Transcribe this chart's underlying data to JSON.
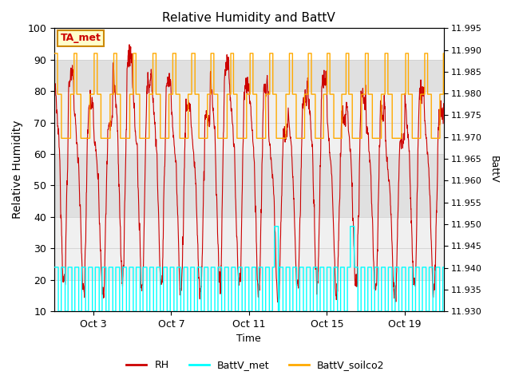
{
  "title": "Relative Humidity and BattV",
  "xlabel": "Time",
  "ylabel_left": "Relative Humidity",
  "ylabel_right": "BattV",
  "ylim_left": [
    10,
    100
  ],
  "ylim_right": [
    11.93,
    11.995
  ],
  "yticks_left": [
    10,
    20,
    30,
    40,
    50,
    60,
    70,
    80,
    90,
    100
  ],
  "yticks_right": [
    11.93,
    11.935,
    11.94,
    11.945,
    11.95,
    11.955,
    11.96,
    11.965,
    11.97,
    11.975,
    11.98,
    11.985,
    11.99,
    11.995
  ],
  "xtick_labels": [
    "Oct 3",
    "Oct 7",
    "Oct 11",
    "Oct 15",
    "Oct 19"
  ],
  "xtick_positions": [
    2,
    6,
    10,
    14,
    18
  ],
  "annotation_text": "TA_met",
  "colors": {
    "rh": "#cc0000",
    "battv_met": "#00ffff",
    "battv_soilco2": "#ffaa00",
    "bg_dark": "#e0e0e0",
    "bg_light": "#f0f0f0",
    "annotation_bg": "#ffffcc",
    "annotation_border": "#cc8800"
  },
  "legend_labels": [
    "RH",
    "BattV_met",
    "BattV_soilco2"
  ]
}
